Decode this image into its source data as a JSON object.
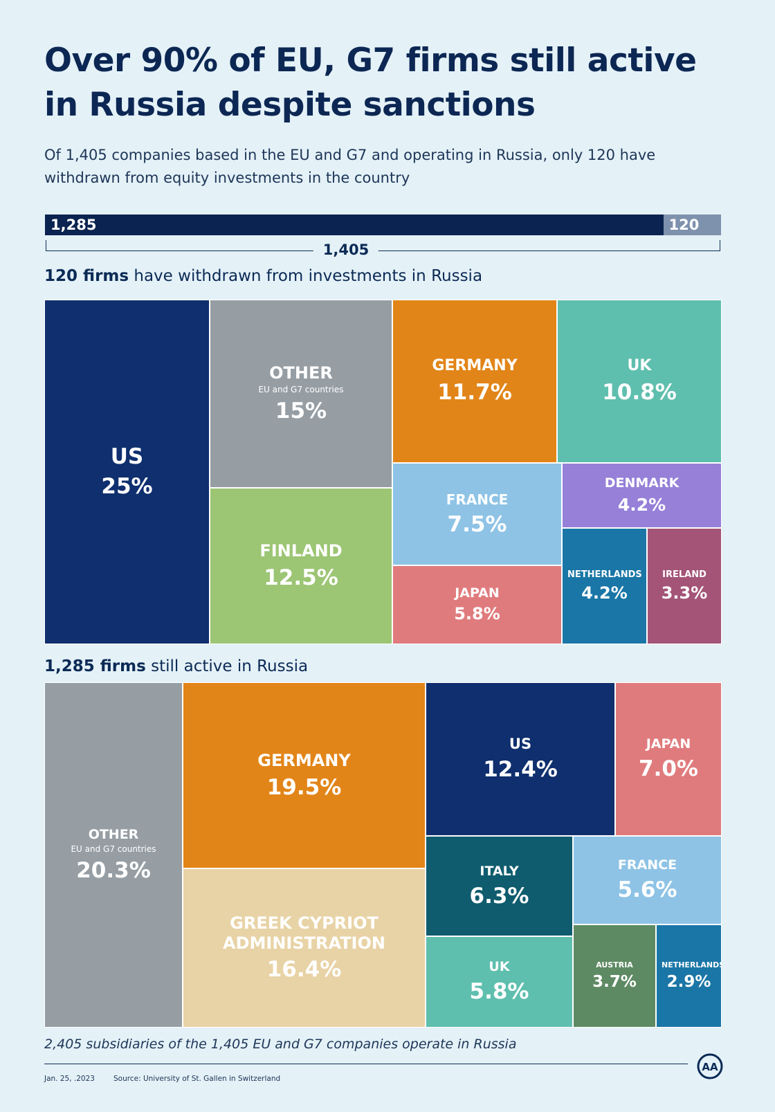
{
  "title": "Over 90% of EU, G7 firms still active in Russia despite sanctions",
  "subtitle": "Of 1,405 companies based in the EU and G7 and operating in Russia, only 120 have withdrawn from equity investments in the country",
  "summary_bar": {
    "active_label": "1,285",
    "withdrawn_label": "120",
    "total_label": "1,405",
    "active_color": "#0b2350",
    "withdrawn_color": "#7e91ad"
  },
  "chart_data": [
    {
      "type": "treemap",
      "title_bold": "120 firms",
      "title_rest": " have withdrawn from investments in Russia",
      "items": [
        {
          "name": "US",
          "pct_label": "25%",
          "value": 25,
          "color": "#0f2f6e"
        },
        {
          "name": "OTHER",
          "sub": "EU and G7 countries",
          "pct_label": "15%",
          "value": 15,
          "color": "#969ea4"
        },
        {
          "name": "FINLAND",
          "pct_label": "12.5%",
          "value": 12.5,
          "color": "#9cc574"
        },
        {
          "name": "GERMANY",
          "pct_label": "11.7%",
          "value": 11.7,
          "color": "#e28518"
        },
        {
          "name": "UK",
          "pct_label": "10.8%",
          "value": 10.8,
          "color": "#5fbfae"
        },
        {
          "name": "FRANCE",
          "pct_label": "7.5%",
          "value": 7.5,
          "color": "#8ec3e6"
        },
        {
          "name": "JAPAN",
          "pct_label": "5.8%",
          "value": 5.8,
          "color": "#e07b7d"
        },
        {
          "name": "DENMARK",
          "pct_label": "4.2%",
          "value": 4.2,
          "color": "#9680d8"
        },
        {
          "name": "NETHERLANDS",
          "pct_label": "4.2%",
          "value": 4.2,
          "color": "#1a76a6"
        },
        {
          "name": "IRELAND",
          "pct_label": "3.3%",
          "value": 3.3,
          "color": "#a35477"
        }
      ]
    },
    {
      "type": "treemap",
      "title_bold": "1,285 firms",
      "title_rest": " still active in Russia",
      "items": [
        {
          "name": "OTHER",
          "sub": "EU and G7 countries",
          "pct_label": "20.3%",
          "value": 20.3,
          "color": "#969ea4"
        },
        {
          "name": "GERMANY",
          "pct_label": "19.5%",
          "value": 19.5,
          "color": "#e28518"
        },
        {
          "name": "GREEK CYPRIOT ADMINISTRATION",
          "pct_label": "16.4%",
          "value": 16.4,
          "color": "#e8d3a6"
        },
        {
          "name": "US",
          "pct_label": "12.4%",
          "value": 12.4,
          "color": "#0f2f6e"
        },
        {
          "name": "JAPAN",
          "pct_label": "7.0%",
          "value": 7.0,
          "color": "#e07b7d"
        },
        {
          "name": "ITALY",
          "pct_label": "6.3%",
          "value": 6.3,
          "color": "#0f5c6e"
        },
        {
          "name": "FRANCE",
          "pct_label": "5.6%",
          "value": 5.6,
          "color": "#8ec3e6"
        },
        {
          "name": "UK",
          "pct_label": "5.8%",
          "value": 5.8,
          "color": "#5fbfae"
        },
        {
          "name": "AUSTRIA",
          "pct_label": "3.7%",
          "value": 3.7,
          "color": "#5e8a63"
        },
        {
          "name": "NETHERLANDS",
          "pct_label": "2.9%",
          "value": 2.9,
          "color": "#1a76a6"
        }
      ]
    }
  ],
  "footnote": "2,405 subsidiaries of the 1,405 EU and G7 companies operate in Russia",
  "date": "Jan. 25, .2023",
  "source": "Source: University of St. Gallen in Switzerland",
  "logo_text": "AA"
}
